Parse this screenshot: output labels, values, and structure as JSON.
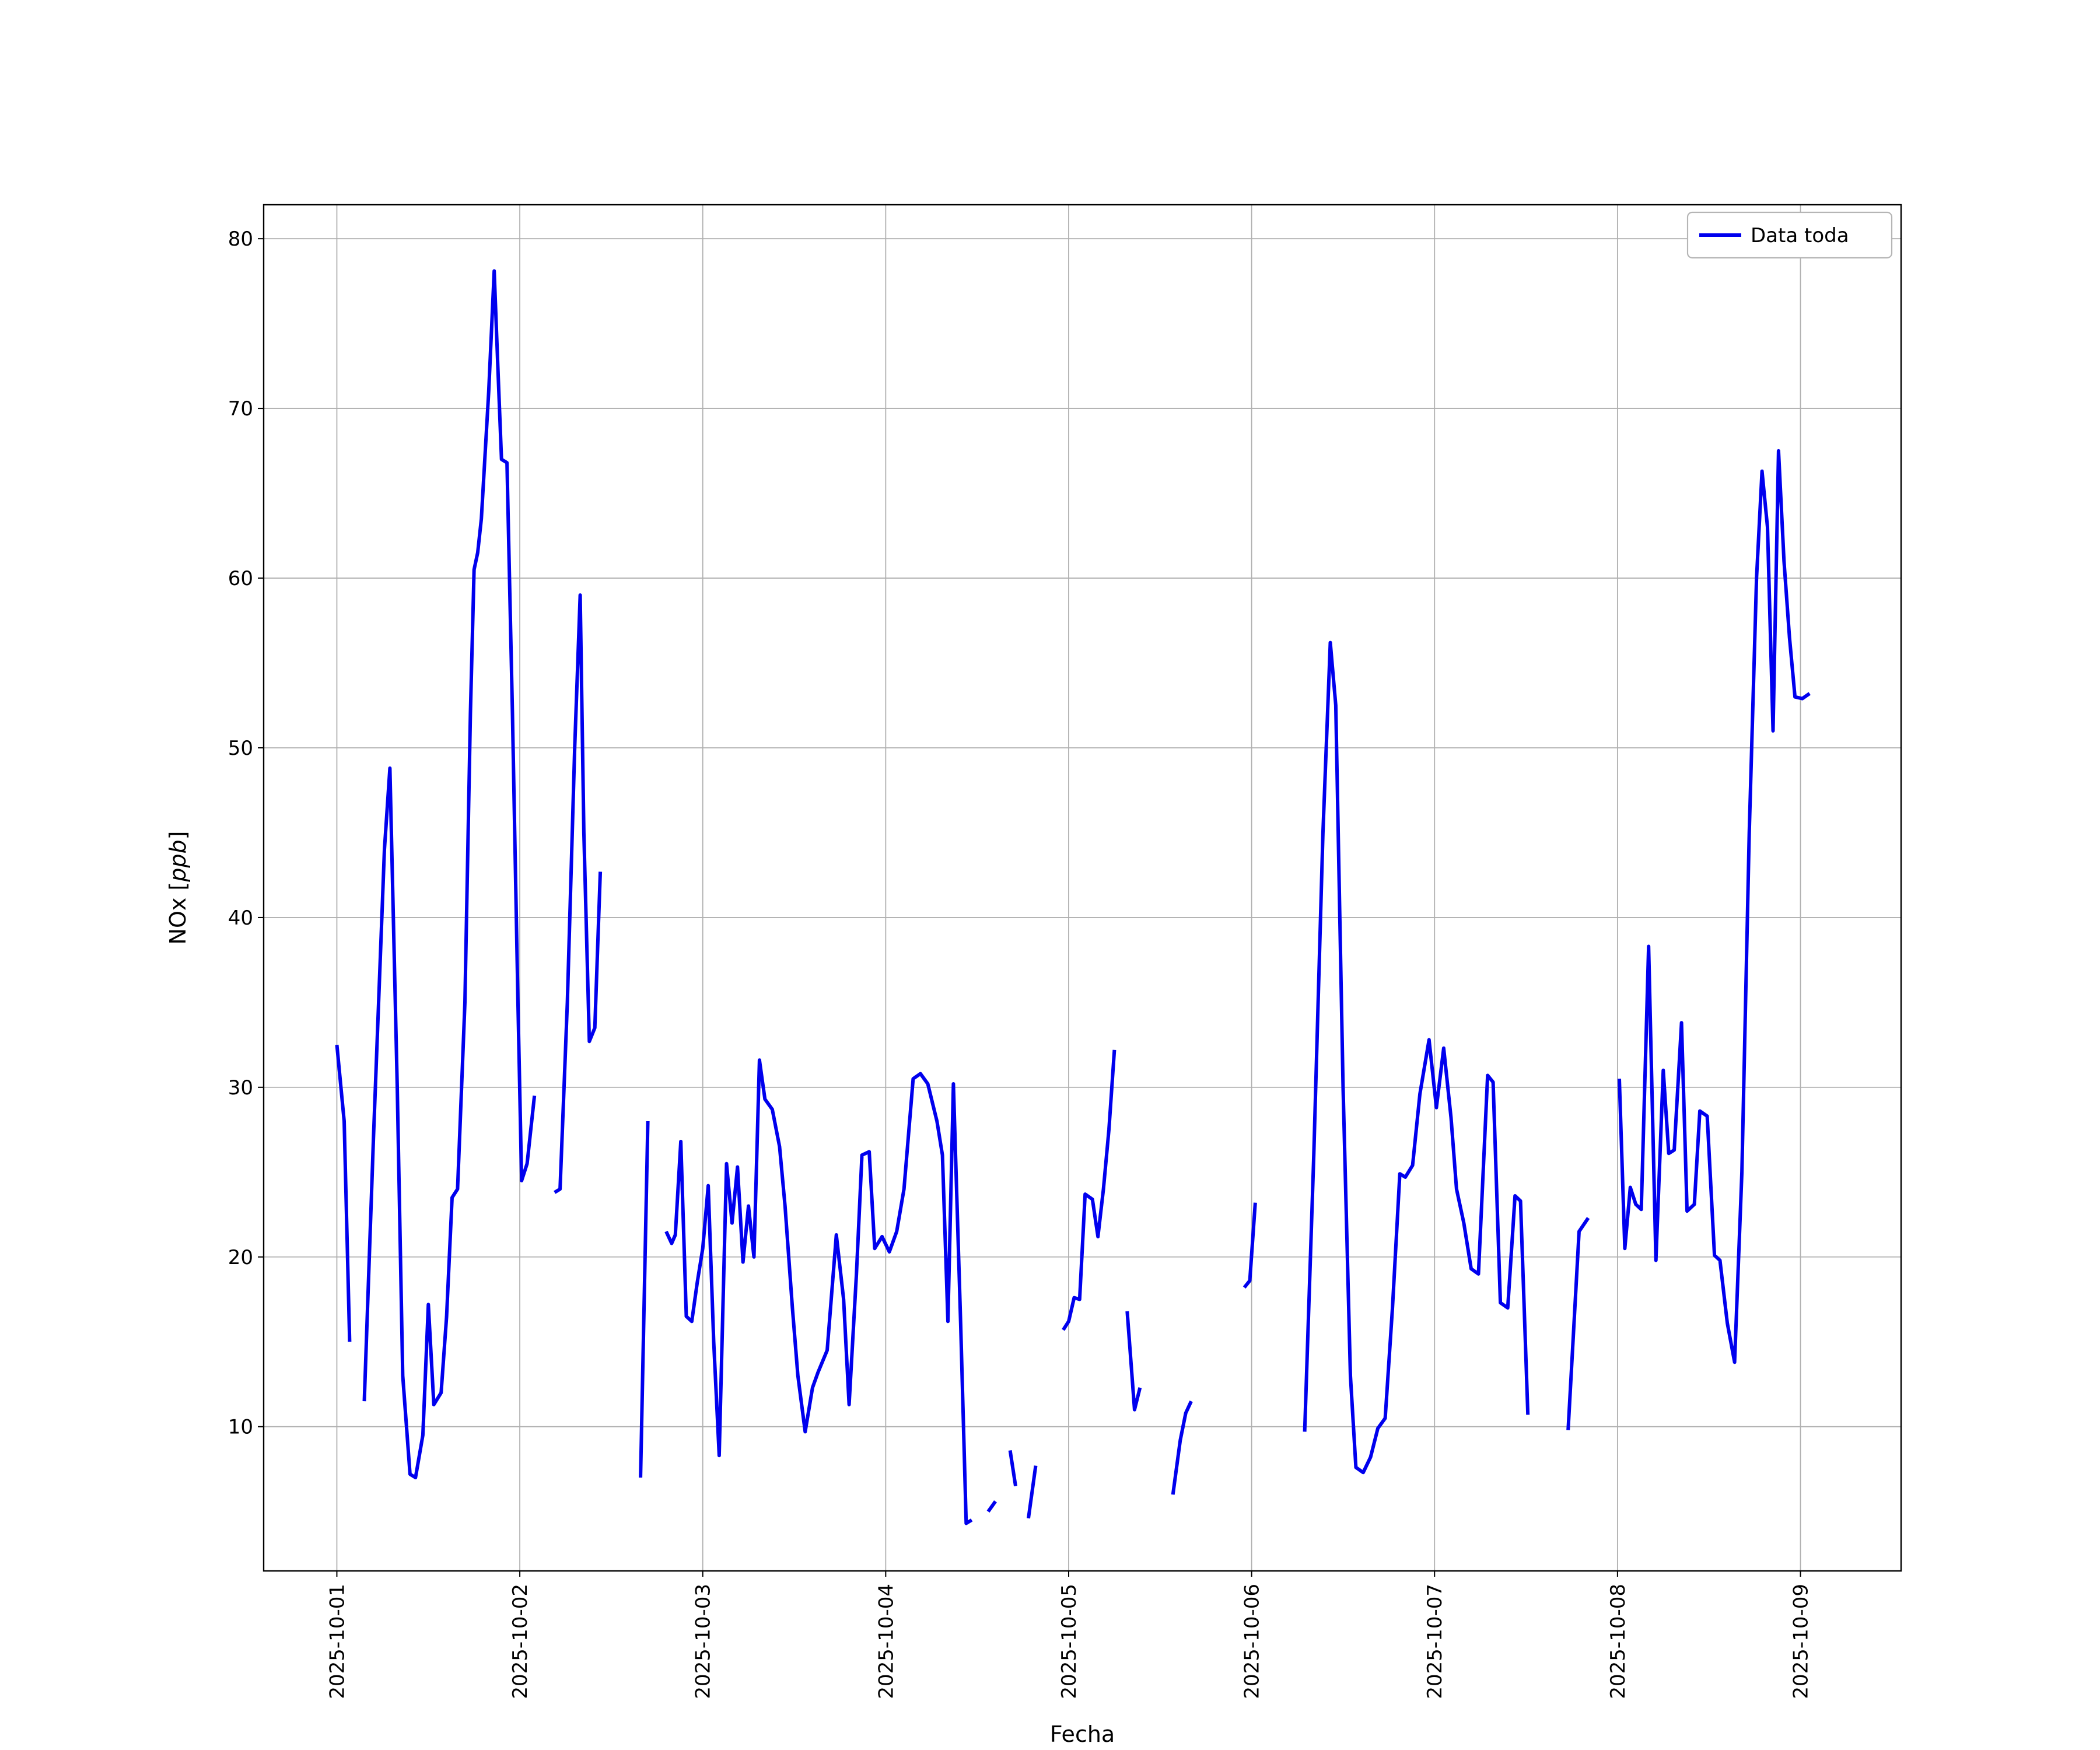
{
  "figure": {
    "background": "#ffffff"
  },
  "chart_data": {
    "type": "line",
    "title": "",
    "xlabel": "Fecha",
    "ylabel": "NOx [ppb]",
    "ylabel_parts": [
      {
        "text": "NOx [",
        "italic": false
      },
      {
        "text": "ppb",
        "italic": true
      },
      {
        "text": "]",
        "italic": false
      }
    ],
    "grid": true,
    "grid_color": "#b0b0b0",
    "line_color": "#0000ee",
    "xlim_days": [
      -0.4,
      8.55
    ],
    "ylim": [
      1.5,
      82
    ],
    "yticks": [
      10,
      20,
      30,
      40,
      50,
      60,
      70,
      80
    ],
    "xticks": [
      {
        "day": 0,
        "label": "2025-10-01"
      },
      {
        "day": 1,
        "label": "2025-10-02"
      },
      {
        "day": 2,
        "label": "2025-10-03"
      },
      {
        "day": 3,
        "label": "2025-10-04"
      },
      {
        "day": 4,
        "label": "2025-10-05"
      },
      {
        "day": 5,
        "label": "2025-10-06"
      },
      {
        "day": 6,
        "label": "2025-10-07"
      },
      {
        "day": 7,
        "label": "2025-10-08"
      },
      {
        "day": 8,
        "label": "2025-10-09"
      }
    ],
    "legend": {
      "position": "upper right",
      "entries": [
        {
          "label": "Data toda",
          "color": "#0000ee"
        }
      ]
    },
    "series": [
      {
        "name": "Data toda",
        "color": "#0000ee",
        "linewidth": 6,
        "points": [
          [
            0.0,
            32.5
          ],
          [
            0.04,
            28.0
          ],
          [
            0.07,
            15.0
          ],
          null,
          [
            0.15,
            11.5
          ],
          [
            0.2,
            27.0
          ],
          [
            0.26,
            44.0
          ],
          [
            0.29,
            48.8
          ],
          [
            0.33,
            30.0
          ],
          [
            0.36,
            13.0
          ],
          [
            0.4,
            7.2
          ],
          [
            0.43,
            7.0
          ],
          [
            0.47,
            9.5
          ],
          [
            0.5,
            17.2
          ],
          [
            0.53,
            11.3
          ],
          [
            0.57,
            12.0
          ],
          [
            0.6,
            16.5
          ],
          [
            0.63,
            23.5
          ],
          [
            0.66,
            24.0
          ],
          [
            0.7,
            35.0
          ],
          [
            0.73,
            52.0
          ],
          [
            0.75,
            60.5
          ],
          [
            0.77,
            61.5
          ],
          [
            0.79,
            63.5
          ],
          [
            0.83,
            71.0
          ],
          [
            0.86,
            78.1
          ],
          [
            0.88,
            72.5
          ],
          [
            0.9,
            67.0
          ],
          [
            0.93,
            66.8
          ],
          [
            0.96,
            52.0
          ],
          [
            0.99,
            35.0
          ],
          [
            1.01,
            24.5
          ],
          [
            1.04,
            25.5
          ],
          [
            1.08,
            29.5
          ],
          null,
          [
            1.19,
            23.8
          ],
          [
            1.22,
            24.0
          ],
          [
            1.26,
            35.0
          ],
          [
            1.3,
            50.0
          ],
          [
            1.33,
            59.0
          ],
          [
            1.35,
            45.0
          ],
          [
            1.38,
            32.7
          ],
          [
            1.41,
            33.5
          ],
          [
            1.44,
            42.7
          ],
          null,
          [
            1.66,
            7.0
          ],
          [
            1.7,
            28.0
          ],
          null,
          [
            1.8,
            21.5
          ],
          [
            1.83,
            20.8
          ],
          [
            1.85,
            21.3
          ],
          [
            1.88,
            26.8
          ],
          [
            1.91,
            16.5
          ],
          [
            1.94,
            16.2
          ],
          [
            1.97,
            18.5
          ],
          [
            2.0,
            20.5
          ],
          [
            2.03,
            24.2
          ],
          [
            2.06,
            15.0
          ],
          [
            2.09,
            8.3
          ],
          [
            2.13,
            25.5
          ],
          [
            2.16,
            22.0
          ],
          [
            2.19,
            25.3
          ],
          [
            2.22,
            19.7
          ],
          [
            2.25,
            23.0
          ],
          [
            2.28,
            20.0
          ],
          [
            2.31,
            31.6
          ],
          [
            2.34,
            29.3
          ],
          [
            2.38,
            28.7
          ],
          [
            2.42,
            26.5
          ],
          [
            2.45,
            23.0
          ],
          [
            2.49,
            17.0
          ],
          [
            2.52,
            13.0
          ],
          [
            2.56,
            9.7
          ],
          [
            2.6,
            12.3
          ],
          [
            2.63,
            13.2
          ],
          [
            2.68,
            14.5
          ],
          [
            2.73,
            21.3
          ],
          [
            2.77,
            17.5
          ],
          [
            2.8,
            11.3
          ],
          [
            2.84,
            19.0
          ],
          [
            2.87,
            26.0
          ],
          [
            2.91,
            26.2
          ],
          [
            2.94,
            20.5
          ],
          [
            2.98,
            21.2
          ],
          [
            3.02,
            20.3
          ],
          [
            3.06,
            21.5
          ],
          [
            3.1,
            24.0
          ],
          [
            3.15,
            30.5
          ],
          [
            3.19,
            30.8
          ],
          [
            3.23,
            30.2
          ],
          [
            3.28,
            28.0
          ],
          [
            3.31,
            26.0
          ],
          [
            3.34,
            16.2
          ],
          [
            3.37,
            30.2
          ],
          [
            3.41,
            16.0
          ],
          [
            3.44,
            4.3
          ],
          [
            3.47,
            4.5
          ],
          null,
          [
            3.56,
            5.0
          ],
          [
            3.6,
            5.6
          ],
          null,
          [
            3.68,
            8.6
          ],
          [
            3.71,
            6.5
          ],
          null,
          [
            3.78,
            4.6
          ],
          [
            3.82,
            7.7
          ],
          null,
          [
            3.97,
            15.7
          ],
          [
            4.0,
            16.2
          ],
          [
            4.03,
            17.6
          ],
          [
            4.06,
            17.5
          ],
          [
            4.09,
            23.7
          ],
          [
            4.13,
            23.4
          ],
          [
            4.16,
            21.2
          ],
          [
            4.19,
            24.0
          ],
          [
            4.22,
            27.5
          ],
          [
            4.25,
            32.2
          ],
          null,
          [
            4.32,
            16.8
          ],
          [
            4.36,
            11.0
          ],
          [
            4.39,
            12.3
          ],
          null,
          [
            4.57,
            6.0
          ],
          [
            4.61,
            9.2
          ],
          [
            4.64,
            10.8
          ],
          [
            4.67,
            11.5
          ],
          null,
          [
            4.96,
            18.2
          ],
          [
            4.99,
            18.6
          ],
          [
            5.02,
            23.2
          ],
          null,
          [
            5.29,
            9.7
          ],
          [
            5.34,
            26.0
          ],
          [
            5.39,
            45.0
          ],
          [
            5.43,
            56.2
          ],
          [
            5.46,
            52.5
          ],
          [
            5.5,
            30.0
          ],
          [
            5.54,
            13.0
          ],
          [
            5.57,
            7.6
          ],
          [
            5.61,
            7.3
          ],
          [
            5.65,
            8.2
          ],
          [
            5.69,
            9.9
          ],
          [
            5.73,
            10.5
          ],
          [
            5.77,
            17.0
          ],
          [
            5.81,
            24.9
          ],
          [
            5.84,
            24.7
          ],
          [
            5.88,
            25.4
          ],
          [
            5.92,
            29.6
          ],
          [
            5.97,
            32.8
          ],
          [
            6.01,
            28.8
          ],
          [
            6.05,
            32.3
          ],
          [
            6.09,
            28.2
          ],
          [
            6.12,
            24.0
          ],
          [
            6.16,
            22.0
          ],
          [
            6.2,
            19.3
          ],
          [
            6.24,
            19.0
          ],
          [
            6.29,
            30.7
          ],
          [
            6.32,
            30.3
          ],
          [
            6.36,
            17.3
          ],
          [
            6.4,
            17.0
          ],
          [
            6.44,
            23.6
          ],
          [
            6.47,
            23.3
          ],
          [
            6.51,
            10.7
          ],
          null,
          [
            6.73,
            9.8
          ],
          [
            6.79,
            21.5
          ],
          [
            6.84,
            22.3
          ],
          null,
          [
            7.01,
            30.5
          ],
          [
            7.04,
            20.5
          ],
          [
            7.07,
            24.1
          ],
          [
            7.1,
            23.1
          ],
          [
            7.13,
            22.8
          ],
          [
            7.17,
            38.3
          ],
          [
            7.21,
            19.8
          ],
          [
            7.25,
            31.0
          ],
          [
            7.28,
            26.1
          ],
          [
            7.31,
            26.3
          ],
          [
            7.35,
            33.8
          ],
          [
            7.38,
            22.7
          ],
          [
            7.42,
            23.1
          ],
          [
            7.45,
            28.6
          ],
          [
            7.49,
            28.3
          ],
          [
            7.53,
            20.1
          ],
          [
            7.56,
            19.8
          ],
          [
            7.6,
            16.1
          ],
          [
            7.64,
            13.8
          ],
          [
            7.68,
            25.0
          ],
          [
            7.72,
            45.0
          ],
          [
            7.76,
            60.0
          ],
          [
            7.79,
            66.3
          ],
          [
            7.82,
            63.0
          ],
          [
            7.85,
            51.0
          ],
          [
            7.88,
            67.5
          ],
          [
            7.91,
            61.0
          ],
          [
            7.94,
            56.5
          ],
          [
            7.97,
            53.0
          ],
          [
            8.01,
            52.9
          ],
          [
            8.05,
            53.2
          ]
        ]
      }
    ]
  }
}
